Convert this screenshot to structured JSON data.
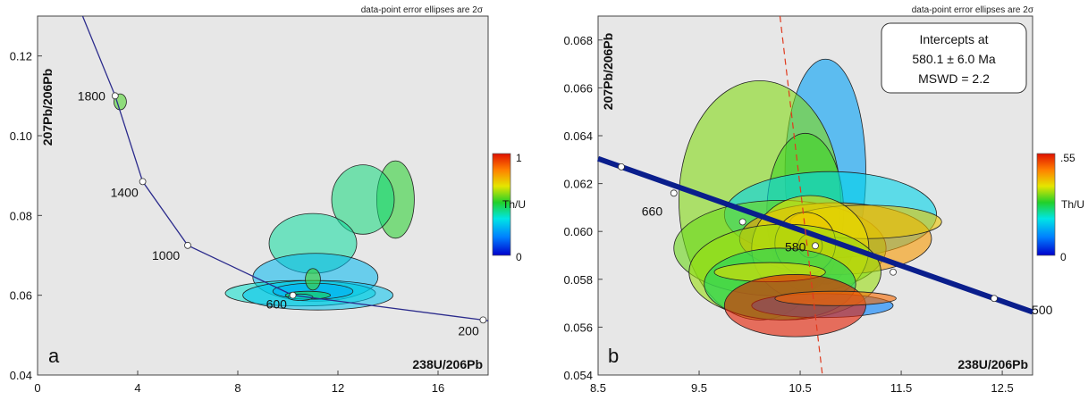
{
  "chart_data": [
    {
      "type": "scatter",
      "subtype": "concordia-error-ellipses",
      "panel_label": "a",
      "note": "data-point error ellipses are 2σ",
      "xlabel": "238U/206Pb",
      "ylabel": "207Pb/206Pb",
      "xlim": [
        0,
        18
      ],
      "ylim": [
        0.04,
        0.13
      ],
      "x_ticks": [
        0,
        4,
        8,
        12,
        16
      ],
      "y_ticks": [
        0.04,
        0.06,
        0.08,
        0.1,
        0.12
      ],
      "grid": false,
      "concordia_points": [
        {
          "age": "1800",
          "x": 3.1,
          "y": 0.11
        },
        {
          "age": "1400",
          "x": 4.2,
          "y": 0.0885
        },
        {
          "age": "1000",
          "x": 6.0,
          "y": 0.0725
        },
        {
          "age": "600",
          "x": 10.2,
          "y": 0.06
        },
        {
          "age": "200",
          "x": 17.8,
          "y": 0.0538
        }
      ],
      "colorbar": {
        "label": "Th/U",
        "min": "0",
        "max": "1"
      },
      "ellipses": [
        {
          "cx": 3.3,
          "cy": 0.1085,
          "rx": 0.25,
          "ry": 0.002,
          "thu": 0.55
        },
        {
          "cx": 14.3,
          "cy": 0.084,
          "rx": 0.75,
          "ry": 0.0097,
          "thu": 0.52
        },
        {
          "cx": 13.0,
          "cy": 0.084,
          "rx": 1.25,
          "ry": 0.0087,
          "thu": 0.45
        },
        {
          "cx": 11.0,
          "cy": 0.073,
          "rx": 1.75,
          "ry": 0.0075,
          "thu": 0.42
        },
        {
          "cx": 11.1,
          "cy": 0.0645,
          "rx": 2.5,
          "ry": 0.006,
          "thu": 0.28
        },
        {
          "cx": 10.5,
          "cy": 0.0605,
          "rx": 3.0,
          "ry": 0.0032,
          "thu": 0.38
        },
        {
          "cx": 11.2,
          "cy": 0.06,
          "rx": 3.0,
          "ry": 0.0037,
          "thu": 0.3
        },
        {
          "cx": 11.0,
          "cy": 0.061,
          "rx": 1.6,
          "ry": 0.002,
          "thu": 0.26
        },
        {
          "cx": 11.0,
          "cy": 0.064,
          "rx": 0.3,
          "ry": 0.0027,
          "thu": 0.55
        },
        {
          "cx": 10.8,
          "cy": 0.06,
          "rx": 0.9,
          "ry": 0.001,
          "thu": 0.5
        },
        {
          "cx": 10.5,
          "cy": 0.0595,
          "rx": 0.5,
          "ry": 0.0008,
          "thu": 0.35
        }
      ]
    },
    {
      "type": "scatter",
      "subtype": "concordia-error-ellipses",
      "panel_label": "b",
      "note": "data-point error ellipses are 2σ",
      "xlabel": "238U/206Pb",
      "ylabel": "207Pb/206Pb",
      "xlim": [
        8.5,
        12.8
      ],
      "ylim": [
        0.054,
        0.069
      ],
      "x_ticks": [
        8.5,
        9.5,
        10.5,
        11.5,
        12.5
      ],
      "y_ticks": [
        0.054,
        0.056,
        0.058,
        0.06,
        0.062,
        0.064,
        0.066,
        0.068
      ],
      "grid": false,
      "concordia_points": [
        {
          "age": "",
          "x": 8.73,
          "y": 0.0627
        },
        {
          "age": "660",
          "x": 9.25,
          "y": 0.0616
        },
        {
          "age": "",
          "x": 9.93,
          "y": 0.0604
        },
        {
          "age": "580",
          "x": 10.65,
          "y": 0.0594
        },
        {
          "age": "",
          "x": 11.42,
          "y": 0.0583
        },
        {
          "age": "500",
          "x": 12.42,
          "y": 0.0572
        }
      ],
      "discordia_intercept_line": {
        "x1": 10.3,
        "y1": 0.069,
        "x2": 10.72,
        "y2": 0.054
      },
      "intercepts_box": [
        "Intercepts at",
        "580.1 ± 6.0 Ma",
        "MSWD = 2.2"
      ],
      "colorbar": {
        "label": "Th/U",
        "min": "0",
        "max": ".55"
      },
      "ellipses": [
        {
          "cx": 10.75,
          "cy": 0.0625,
          "rx": 0.4,
          "ry": 0.0047,
          "thu": 0.13
        },
        {
          "cx": 10.1,
          "cy": 0.0613,
          "rx": 0.8,
          "ry": 0.005,
          "thu": 0.33
        },
        {
          "cx": 10.55,
          "cy": 0.0608,
          "rx": 0.38,
          "ry": 0.0033,
          "thu": 0.3
        },
        {
          "cx": 10.8,
          "cy": 0.0607,
          "rx": 1.05,
          "ry": 0.0018,
          "thu": 0.18
        },
        {
          "cx": 10.3,
          "cy": 0.0593,
          "rx": 1.05,
          "ry": 0.002,
          "thu": 0.32
        },
        {
          "cx": 10.85,
          "cy": 0.0597,
          "rx": 0.95,
          "ry": 0.0015,
          "thu": 0.44
        },
        {
          "cx": 11.15,
          "cy": 0.0604,
          "rx": 0.75,
          "ry": 0.0007,
          "thu": 0.4
        },
        {
          "cx": 10.6,
          "cy": 0.0593,
          "rx": 0.58,
          "ry": 0.0022,
          "thu": 0.38
        },
        {
          "cx": 10.55,
          "cy": 0.0595,
          "rx": 0.3,
          "ry": 0.0013,
          "thu": 0.4
        },
        {
          "cx": 10.6,
          "cy": 0.0594,
          "rx": 0.12,
          "ry": 0.0005,
          "thu": 0.42
        },
        {
          "cx": 10.35,
          "cy": 0.0583,
          "rx": 0.95,
          "ry": 0.002,
          "thu": 0.34
        },
        {
          "cx": 10.3,
          "cy": 0.0578,
          "rx": 0.75,
          "ry": 0.0015,
          "thu": 0.26
        },
        {
          "cx": 10.2,
          "cy": 0.0583,
          "rx": 0.55,
          "ry": 0.0004,
          "thu": 0.38
        },
        {
          "cx": 10.72,
          "cy": 0.0569,
          "rx": 0.7,
          "ry": 0.0005,
          "thu": 0.1
        },
        {
          "cx": 10.45,
          "cy": 0.0569,
          "rx": 0.7,
          "ry": 0.0013,
          "thu": 0.54
        },
        {
          "cx": 10.85,
          "cy": 0.0572,
          "rx": 0.6,
          "ry": 0.0003,
          "thu": 0.48
        }
      ]
    }
  ]
}
